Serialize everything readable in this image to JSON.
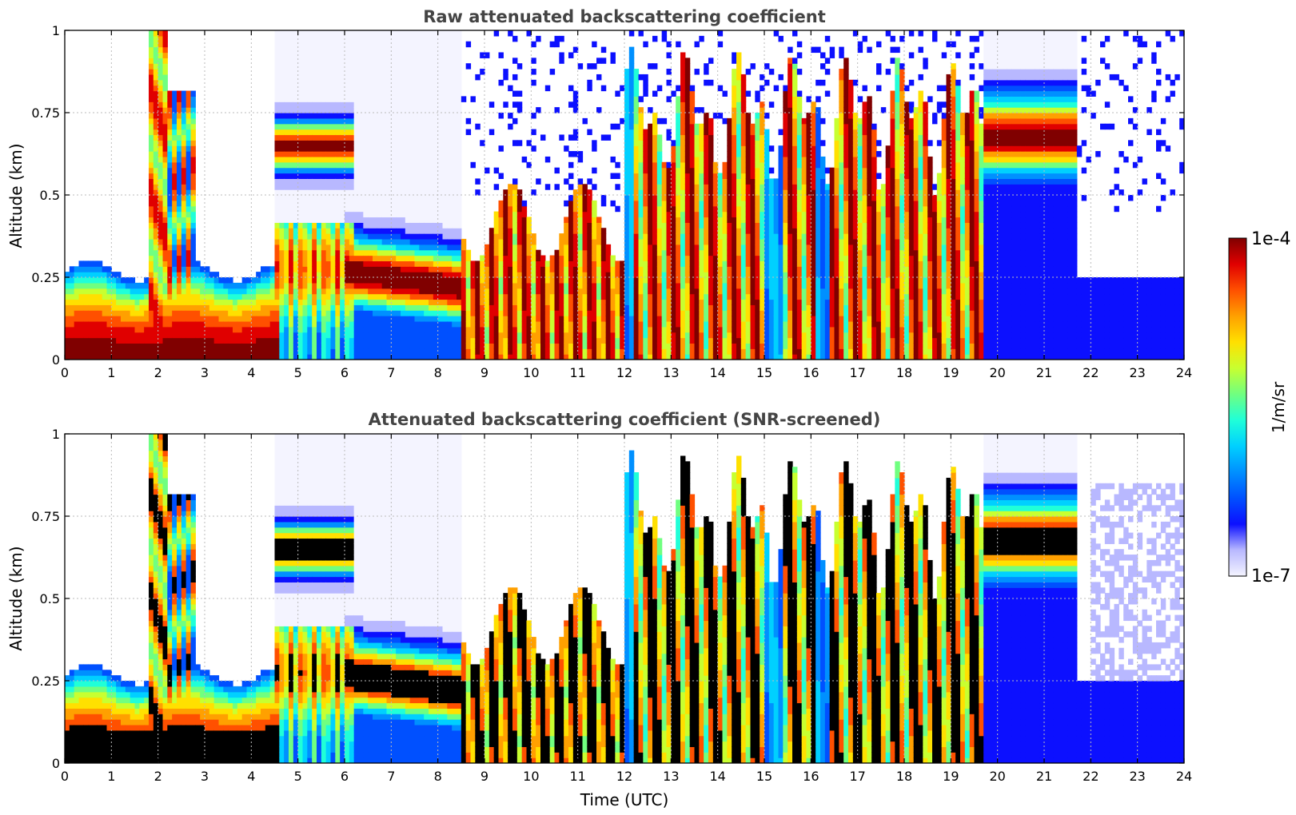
{
  "colors": {
    "scale": [
      "#f4f4ff",
      "#b8b8ff",
      "#0c10ff",
      "#0050ff",
      "#0090ff",
      "#00d0ff",
      "#20ffd8",
      "#70ff80",
      "#c8ff30",
      "#ffe000",
      "#ffa000",
      "#ff5000",
      "#e00000",
      "#800000"
    ],
    "screened_core": "#000000",
    "frame": "#000000",
    "grid": "#bbbbbb",
    "title": "#444444"
  },
  "chart_data": [
    {
      "type": "heatmap",
      "title": "Raw attenuated backscattering coefficient",
      "xlabel": "",
      "ylabel": "Altitude (km)",
      "xlim": [
        0,
        24
      ],
      "ylim": [
        0,
        1
      ],
      "x_ticks": [
        "0",
        "1",
        "2",
        "3",
        "4",
        "5",
        "6",
        "7",
        "8",
        "9",
        "10",
        "11",
        "12",
        "13",
        "14",
        "15",
        "16",
        "17",
        "18",
        "19",
        "20",
        "21",
        "22",
        "23",
        "24"
      ],
      "y_ticks": [
        "0",
        "0.25",
        "0.5",
        "0.75",
        "1"
      ],
      "grid": true,
      "colorscale": "jet, log scale",
      "layers_approx_km": [
        {
          "from_h": 0,
          "to_h": 1.8,
          "base": 0,
          "top": 0.25
        },
        {
          "from_h": 1.8,
          "to_h": 2.3,
          "base": 0,
          "top": 1.0
        },
        {
          "from_h": 2.3,
          "to_h": 4.5,
          "base": 0,
          "top": 0.25
        },
        {
          "from_h": 4.5,
          "to_h": 6.2,
          "base": 0.6,
          "top": 0.72
        },
        {
          "from_h": 6.0,
          "to_h": 8.5,
          "base": 0.15,
          "top": 0.35
        },
        {
          "from_h": 8.5,
          "to_h": 12.0,
          "base": 0,
          "top": 0.45
        },
        {
          "from_h": 12.0,
          "to_h": 19.7,
          "base": 0,
          "top": 0.9
        },
        {
          "from_h": 20.0,
          "to_h": 21.7,
          "base": 0.55,
          "top": 0.85
        }
      ]
    },
    {
      "type": "heatmap",
      "title": "Attenuated backscattering coefficient (SNR-screened)",
      "xlabel": "Time (UTC)",
      "ylabel": "Altitude (km)",
      "xlim": [
        0,
        24
      ],
      "ylim": [
        0,
        1
      ],
      "x_ticks": [
        "0",
        "1",
        "2",
        "3",
        "4",
        "5",
        "6",
        "7",
        "8",
        "9",
        "10",
        "11",
        "12",
        "13",
        "14",
        "15",
        "16",
        "17",
        "18",
        "19",
        "20",
        "21",
        "22",
        "23",
        "24"
      ],
      "y_ticks": [
        "0",
        "0.25",
        "0.5",
        "0.75",
        "1"
      ],
      "grid": true,
      "colorscale": "jet, log scale"
    }
  ],
  "colorbar": {
    "max_label": "1e-4",
    "min_label": "1e-7",
    "unit_label": "1/m/sr"
  }
}
